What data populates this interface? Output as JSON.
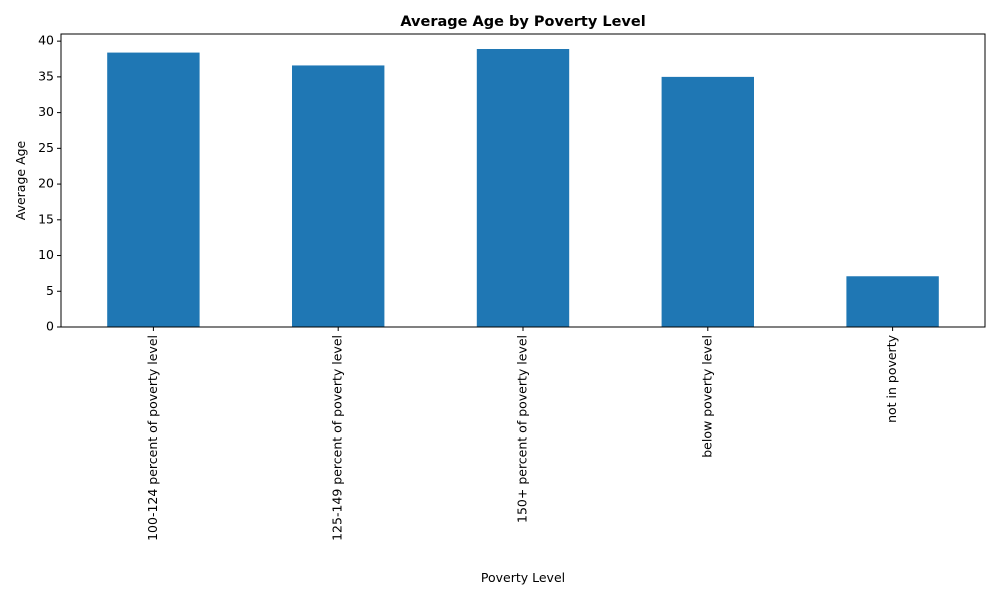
{
  "chart_data": {
    "type": "bar",
    "title": "Average Age by Poverty Level",
    "xlabel": "Poverty Level",
    "ylabel": "Average Age",
    "categories": [
      "100-124 percent of poverty level",
      "125-149 percent of poverty level",
      "150+ percent of poverty level",
      "below poverty level",
      "not in poverty"
    ],
    "values": [
      38.4,
      36.6,
      38.9,
      35.0,
      7.1
    ],
    "ylim": [
      0,
      41
    ],
    "yticks": [
      0,
      5,
      10,
      15,
      20,
      25,
      30,
      35,
      40
    ],
    "grid": false,
    "legend": "none",
    "bar_color": "#1f77b4"
  }
}
